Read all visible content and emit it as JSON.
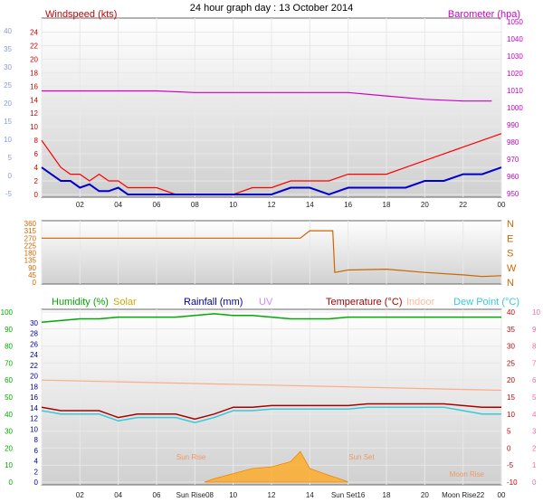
{
  "chart_data": [
    {
      "type": "line",
      "title": "24 hour graph day : 13 October 2014",
      "legend": {
        "windspeed": "Windspeed (kts)",
        "barometer": "Barometer (hpa)"
      },
      "x_ticks": [
        "02",
        "04",
        "06",
        "08",
        "10",
        "12",
        "14",
        "16",
        "18",
        "20",
        "22",
        "00"
      ],
      "xlim": [
        0,
        24
      ],
      "wind_ticks_right": [
        "0",
        "2",
        "4",
        "6",
        "8",
        "10",
        "12",
        "14",
        "16",
        "18",
        "20",
        "22",
        "24"
      ],
      "wind_ticks_left": [
        "-5",
        "0",
        "5",
        "10",
        "15",
        "20",
        "25",
        "30",
        "35",
        "40"
      ],
      "baro_ticks": [
        "950",
        "960",
        "970",
        "980",
        "990",
        "1000",
        "1010",
        "1020",
        "1030",
        "1040",
        "1050"
      ],
      "wind_ylim": [
        0,
        25
      ],
      "baro_ylim": [
        948,
        1052
      ],
      "colors": {
        "gust": "#ff0000",
        "avg": "#0000cc",
        "dir_faint": "#9aa8ee",
        "baro": "#cc00cc",
        "wind_label": "#cc0000",
        "left_axis": "#8899ee"
      },
      "series": [
        {
          "name": "Windspeed (kts)",
          "x": [
            0,
            0.5,
            1,
            1.5,
            2,
            2.5,
            3,
            3.5,
            4,
            4.5,
            5,
            6,
            7,
            8,
            9,
            10,
            11,
            12,
            13,
            14,
            15,
            16,
            17,
            18,
            19,
            20,
            21,
            22,
            23,
            24
          ],
          "values": [
            4,
            3,
            2,
            2,
            1,
            1.5,
            0.5,
            0.5,
            1,
            0,
            0,
            0,
            0,
            0,
            0,
            0,
            0,
            0,
            1,
            1,
            0,
            1,
            1,
            1,
            1,
            2,
            2,
            3,
            3,
            4
          ]
        },
        {
          "x": [
            0,
            0.5,
            1,
            1.5,
            2,
            2.5,
            3,
            3.5,
            4,
            4.5,
            5,
            6,
            7,
            8,
            9,
            10,
            11,
            12,
            13,
            14,
            15,
            16,
            17,
            18,
            19,
            20,
            21,
            22,
            23,
            24
          ],
          "values": [
            8,
            6,
            4,
            3,
            3,
            2,
            3,
            2,
            2,
            1,
            1,
            1,
            0,
            0,
            0,
            0,
            1,
            1,
            2,
            2,
            2,
            3,
            3,
            3,
            4,
            5,
            6,
            7,
            8,
            9
          ]
        },
        {
          "name": "Barometer (hpa)",
          "x": [
            0,
            2,
            4,
            6,
            8,
            10,
            12,
            14,
            16,
            18,
            20,
            22,
            23.5
          ],
          "values": [
            1011,
            1011,
            1011,
            1011,
            1010,
            1010,
            1010,
            1010,
            1010,
            1008,
            1006,
            1005,
            1005
          ]
        }
      ]
    },
    {
      "type": "line",
      "y_ticks": [
        "0",
        "45",
        "90",
        "135",
        "180",
        "225",
        "270",
        "315",
        "360"
      ],
      "ylim": [
        0,
        360
      ],
      "compass": [
        "N",
        "W",
        "S",
        "E",
        "N"
      ],
      "color": "#cc6600",
      "series": [
        {
          "x": [
            0,
            1,
            2,
            3,
            4,
            6,
            8,
            10,
            12,
            13.5,
            14,
            15.2,
            15.3,
            16,
            18,
            20,
            22,
            23,
            24
          ],
          "values": [
            270,
            270,
            270,
            270,
            270,
            270,
            270,
            270,
            270,
            270,
            315,
            315,
            60,
            75,
            80,
            60,
            45,
            35,
            40
          ]
        }
      ]
    },
    {
      "type": "line",
      "legend": {
        "humidity": "Humidity (%)",
        "solar": "Solar",
        "rainfall": "Rainfall (mm)",
        "uv": "UV",
        "temperature": "Temperature (°C)",
        "indoor": "Indoor",
        "dewpoint": "Dew Point (°C)"
      },
      "x_ticks": [
        "02",
        "04",
        "06",
        "Sun Rise08",
        "10",
        "12",
        "14",
        "Sun Set16",
        "18",
        "20",
        "Moon Rise22",
        "00"
      ],
      "annotations": [
        "Sun Rise",
        "Sun Set",
        "Moon Rise"
      ],
      "humidity_ticks": [
        "0",
        "10",
        "20",
        "30",
        "40",
        "50",
        "60",
        "70",
        "80",
        "90",
        "100"
      ],
      "rain_ticks": [
        "0",
        "2",
        "4",
        "6",
        "8",
        "10",
        "12",
        "14",
        "16",
        "18",
        "20",
        "22",
        "24",
        "26",
        "28",
        "30"
      ],
      "temp_ticks": [
        "-10",
        "-5",
        "0",
        "5",
        "10",
        "15",
        "20",
        "25",
        "30",
        "35",
        "40"
      ],
      "uv_ticks": [
        "0",
        "1",
        "2",
        "3",
        "4",
        "5",
        "6",
        "7",
        "8",
        "9",
        "10"
      ],
      "humidity_ylim": [
        0,
        100
      ],
      "temp_ylim": [
        -10,
        40
      ],
      "colors": {
        "humidity": "#00aa00",
        "solar": "#ffaa22",
        "rainfall": "#000099",
        "uv": "#cc88ff",
        "temperature": "#aa0000",
        "indoor": "#ffaa88",
        "dewpoint": "#33ccdd"
      },
      "series": [
        {
          "name": "Humidity (%)",
          "x": [
            0,
            1,
            2,
            3,
            4,
            5,
            6,
            7,
            8,
            9,
            10,
            11,
            12,
            13,
            14,
            15,
            16,
            17,
            18,
            19,
            20,
            21,
            22,
            23,
            24
          ],
          "values": [
            94,
            95,
            96,
            96,
            97,
            97,
            97,
            97,
            98,
            99,
            98,
            98,
            97,
            96,
            96,
            96,
            97,
            97,
            97,
            97,
            97,
            97,
            97,
            97,
            97
          ]
        },
        {
          "name": "Temperature (°C)",
          "x": [
            0,
            1,
            2,
            3,
            4,
            5,
            6,
            7,
            8,
            9,
            10,
            11,
            12,
            13,
            14,
            15,
            16,
            17,
            18,
            19,
            20,
            21,
            22,
            23,
            24
          ],
          "values": [
            12,
            11,
            11,
            11,
            9,
            10,
            10,
            10,
            8.5,
            10,
            12,
            12,
            12.5,
            12.5,
            12.5,
            12.5,
            12.5,
            13,
            13,
            13,
            13,
            13,
            12.5,
            12,
            12
          ]
        },
        {
          "name": "Dew Point (°C)",
          "x": [
            0,
            1,
            2,
            3,
            4,
            5,
            6,
            7,
            8,
            9,
            10,
            11,
            12,
            13,
            14,
            15,
            16,
            17,
            18,
            19,
            20,
            21,
            22,
            23,
            24
          ],
          "values": [
            11,
            10,
            10,
            10,
            8,
            9,
            9,
            9,
            7.5,
            9,
            11,
            11,
            11.5,
            11.5,
            11.5,
            11.5,
            11.5,
            12,
            12,
            12,
            12,
            12,
            11,
            10,
            10
          ]
        },
        {
          "name": "Indoor",
          "x": [
            0,
            4,
            8,
            12,
            16,
            20,
            24
          ],
          "values": [
            20,
            19.5,
            19,
            18.5,
            18,
            17.5,
            17
          ]
        },
        {
          "name": "Solar",
          "x": [
            8.5,
            9,
            10,
            11,
            12,
            13,
            13.5,
            14,
            15,
            15.8,
            16
          ],
          "values": [
            0,
            2,
            5,
            8,
            9,
            12,
            18,
            8,
            4,
            1,
            0
          ]
        }
      ]
    }
  ]
}
